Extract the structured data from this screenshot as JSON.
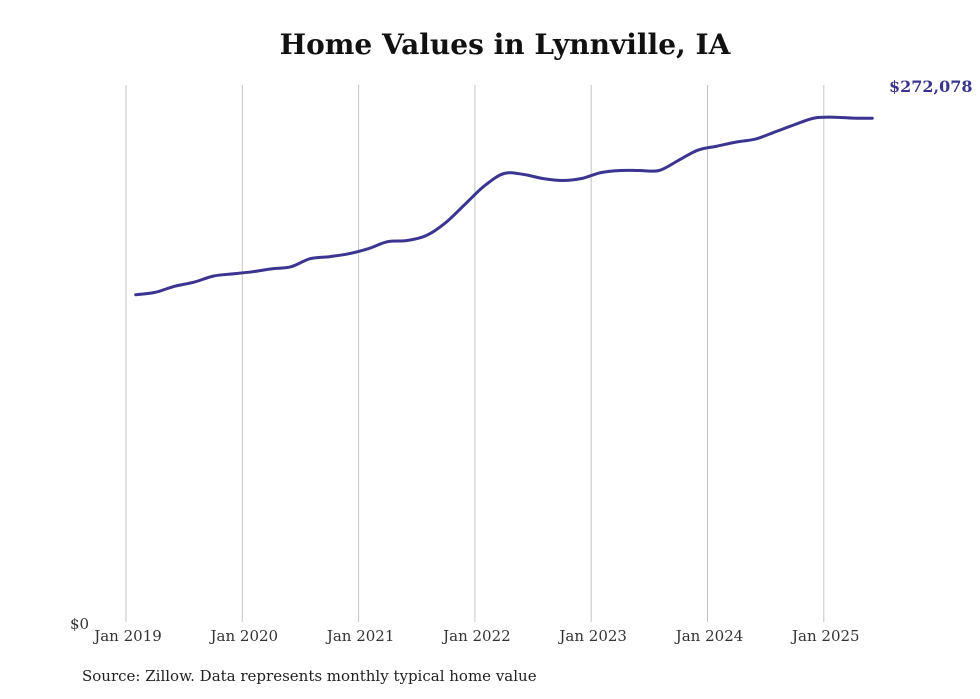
{
  "chart_data": {
    "type": "line",
    "title": "Home Values in Lynnville, IA",
    "xlabel": "",
    "ylabel": "",
    "y_zero_label": "$0",
    "ylim": [
      0,
      290000
    ],
    "x_ticks": [
      "Jan 2019",
      "Jan 2020",
      "Jan 2021",
      "Jan 2022",
      "Jan 2023",
      "Jan 2024",
      "Jan 2025"
    ],
    "grid": "vertical",
    "line_color": "#3b3591",
    "end_label": "$272,078",
    "series": [
      {
        "x": [
          "2019-02",
          "2019-04",
          "2019-06",
          "2019-08",
          "2019-10",
          "2019-12",
          "2020-02",
          "2020-04",
          "2020-06",
          "2020-08",
          "2020-10",
          "2020-12",
          "2021-02",
          "2021-04",
          "2021-06",
          "2021-08",
          "2021-10",
          "2021-12",
          "2022-02",
          "2022-04",
          "2022-06",
          "2022-08",
          "2022-10",
          "2022-12",
          "2023-02",
          "2023-04",
          "2023-06",
          "2023-08",
          "2023-10",
          "2023-12",
          "2024-02",
          "2024-04",
          "2024-06",
          "2024-08",
          "2024-10",
          "2024-12",
          "2025-02",
          "2025-04",
          "2025-06"
        ],
        "values": [
          176700,
          178000,
          181300,
          183500,
          186800,
          188000,
          189100,
          190700,
          191800,
          196200,
          197300,
          198900,
          201600,
          205400,
          206000,
          208700,
          215700,
          225700,
          235600,
          242200,
          241700,
          239500,
          238400,
          239500,
          242700,
          243800,
          243800,
          243800,
          249300,
          254800,
          257000,
          259200,
          260900,
          264700,
          268600,
          272100,
          272600,
          272100,
          272078
        ]
      }
    ]
  },
  "source": "Source: Zillow. Data represents monthly typical home value"
}
